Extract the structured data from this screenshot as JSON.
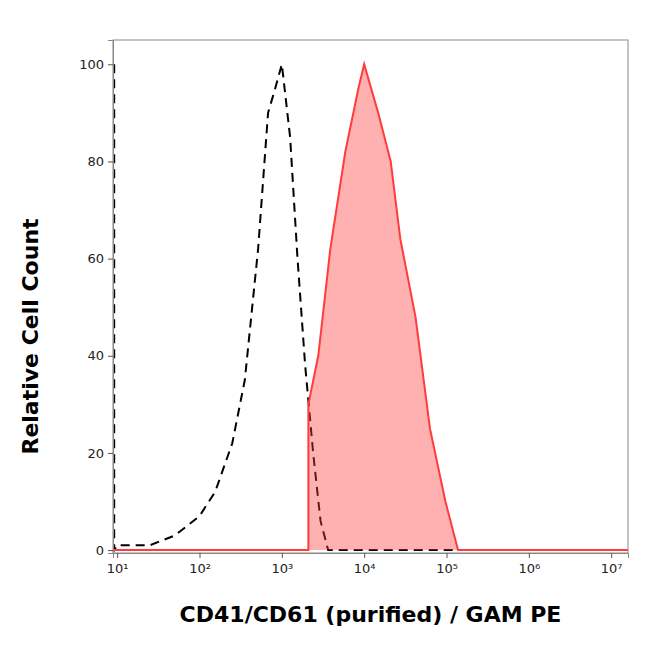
{
  "chart_data": {
    "type": "line",
    "x_label": "CD41/CD61 (purified) / GAM PE",
    "y_label": "Relative Cell Count",
    "log": "x",
    "grid": false,
    "xlim": [
      8.9,
      16000000
    ],
    "ylim": [
      -0.6,
      105
    ],
    "xticks": [
      {
        "value": 10,
        "label": "10¹"
      },
      {
        "value": 100,
        "label": "10²"
      },
      {
        "value": 1000,
        "label": "10³"
      },
      {
        "value": 10000,
        "label": "10⁴"
      },
      {
        "value": 100000,
        "label": "10⁵"
      },
      {
        "value": 1000000,
        "label": "10⁶"
      },
      {
        "value": 10000000,
        "label": "10⁷"
      }
    ],
    "yticks": [
      0,
      20,
      40,
      60,
      80,
      100
    ],
    "series": [
      {
        "type": "line",
        "color": "#000000",
        "line_style": "dashed",
        "x": [
          9.2,
          9.2,
          10,
          25,
          50,
          100,
          155,
          250,
          355,
          515,
          680,
          830,
          1000,
          1260,
          1550,
          1920,
          2400,
          2950,
          3650,
          200000
        ],
        "values": [
          100,
          0,
          1,
          1,
          3,
          7,
          12,
          22,
          35,
          62,
          90,
          95,
          100,
          85,
          60,
          38,
          20,
          6,
          0,
          0
        ]
      },
      {
        "type": "area",
        "color": "#ff3b3b",
        "line_style": "solid",
        "x": [
          9,
          2100,
          2100,
          2770,
          3880,
          5900,
          8500,
          10000,
          14800,
          21000,
          27500,
          42000,
          63000,
          97000,
          138000,
          16000000
        ],
        "values": [
          0,
          0,
          30,
          40,
          62,
          82,
          95,
          100,
          90,
          80,
          64,
          48,
          25,
          10,
          0,
          0
        ]
      }
    ]
  }
}
